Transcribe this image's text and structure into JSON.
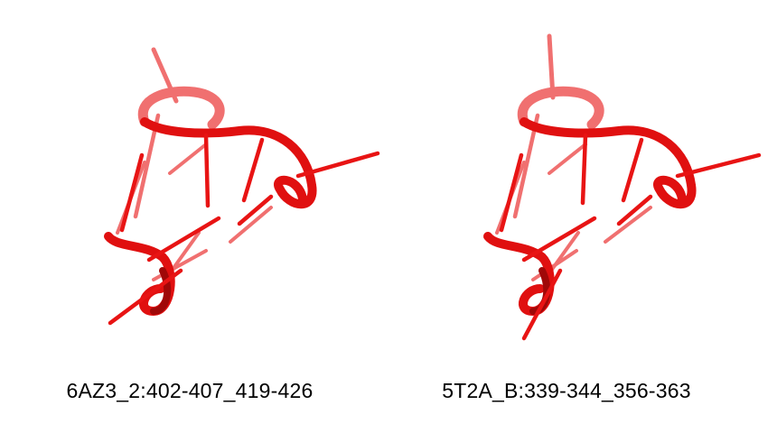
{
  "colors": {
    "backbone": "#e01010",
    "backbone_dark": "#a00808",
    "backbone_light": "#f26b6b",
    "base_stick": "#e81414",
    "base_stick_faded": "#f07070",
    "background": "#ffffff",
    "caption_text": "#000000"
  },
  "panels": [
    {
      "label": "6AZ3_2:402-407_419-426"
    },
    {
      "label": "5T2A_B:339-344_356-363"
    }
  ]
}
